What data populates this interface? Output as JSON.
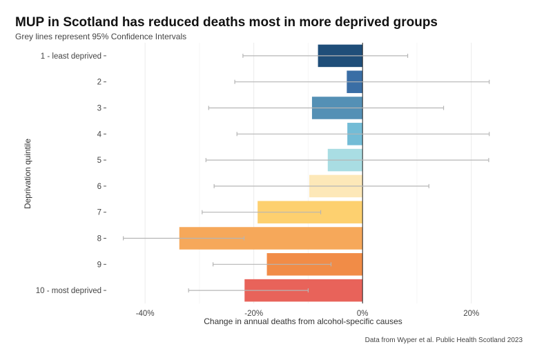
{
  "title": "MUP in Scotland has reduced deaths most in more deprived groups",
  "subtitle": "Grey lines represent 95% Confidence Intervals",
  "caption": "Data from Wyper et al. Public Health Scotland 2023",
  "chart_data": {
    "type": "bar",
    "orientation": "horizontal",
    "title": "MUP in Scotland has reduced deaths most in more deprived groups",
    "subtitle": "Grey lines represent 95% Confidence Intervals",
    "xlabel": "Change in annual deaths from alcohol-specific causes",
    "ylabel": "Deprivation quintile",
    "xlim": [
      -47,
      26
    ],
    "xticks": [
      -40,
      -20,
      0,
      20
    ],
    "xtick_labels": [
      "-40%",
      "-20%",
      "0%",
      "20%"
    ],
    "categories": [
      "1 - least deprived",
      "2",
      "3",
      "4",
      "5",
      "6",
      "7",
      "8",
      "9",
      "10 - most deprived"
    ],
    "values": [
      -8.2,
      -2.9,
      -9.3,
      -2.8,
      -6.4,
      -9.8,
      -19.3,
      -33.7,
      -17.6,
      -21.7
    ],
    "ci_low": [
      -22.0,
      -23.5,
      -28.3,
      -23.1,
      -28.8,
      -27.3,
      -29.5,
      -44.0,
      -27.5,
      -32.0
    ],
    "ci_high": [
      8.3,
      23.3,
      14.9,
      23.3,
      23.2,
      12.2,
      -7.7,
      -21.8,
      -5.8,
      -10.0
    ],
    "colors": [
      "#1f4e79",
      "#3a6ea5",
      "#5490b5",
      "#73bcd6",
      "#a9dde3",
      "#fde8b8",
      "#fdd06f",
      "#f6a85a",
      "#f18c47",
      "#e8635a"
    ]
  }
}
